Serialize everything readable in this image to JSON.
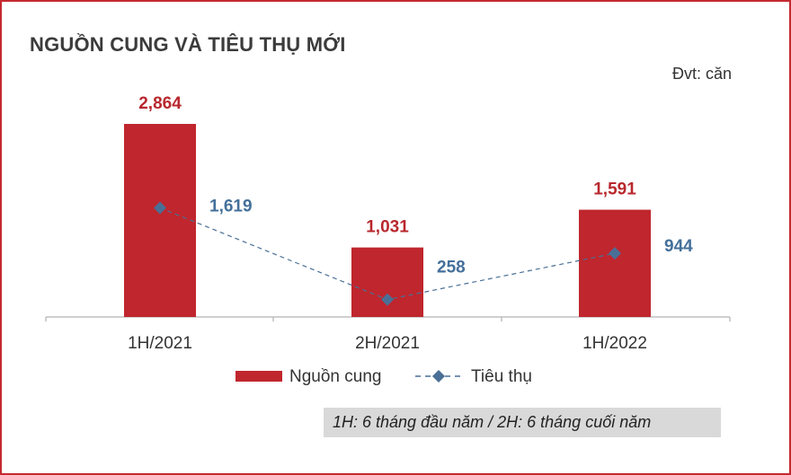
{
  "title": "NGUỒN CUNG VÀ TIÊU THỤ MỚI",
  "unit_label": "Đvt: căn",
  "note": "1H: 6 tháng đầu năm / 2H: 6 tháng cuối năm",
  "colors": {
    "bar": "#c0262d",
    "line": "#4a6f96",
    "bar_label": "#b8282e",
    "line_label": "#44709a",
    "frame": "#c32a2f"
  },
  "chart_data": {
    "type": "bar",
    "categories": [
      "1H/2021",
      "2H/2021",
      "1H/2022"
    ],
    "series": [
      {
        "name": "Nguồn cung",
        "type": "bar",
        "values": [
          2864,
          1031,
          1591
        ],
        "labels": [
          "2,864",
          "1,031",
          "1,591"
        ]
      },
      {
        "name": "Tiêu thụ",
        "type": "line",
        "style": "dashed",
        "marker": "diamond",
        "values": [
          1619,
          258,
          944
        ],
        "labels": [
          "1,619",
          "258",
          "944"
        ]
      }
    ],
    "ylim": [
      0,
      2864
    ],
    "legend": "bottom-center",
    "grid": false
  }
}
